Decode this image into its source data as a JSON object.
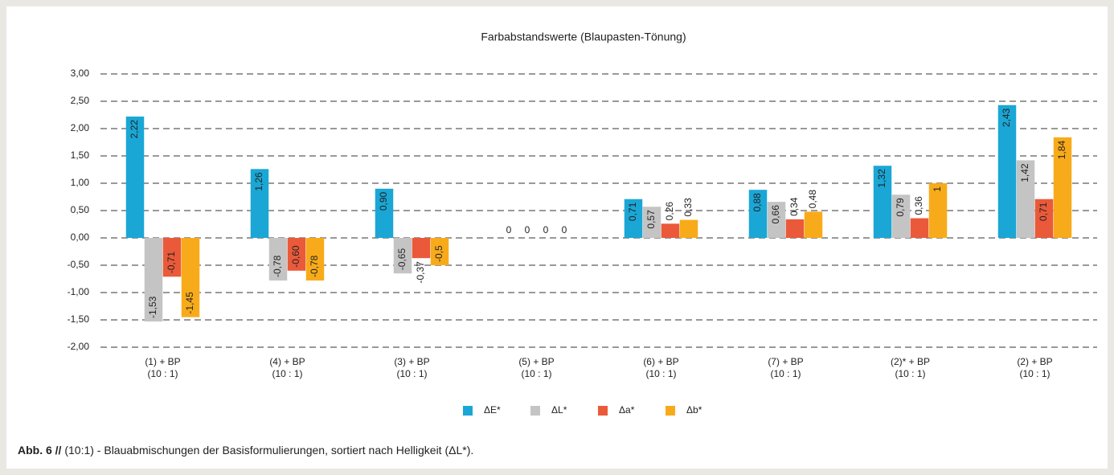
{
  "chart_data": {
    "type": "bar",
    "title": "Farbabstandswerte (Blaupasten-Tönung)",
    "categories": [
      "(1) + BP\n(10 : 1)",
      "(4) + BP\n(10 : 1)",
      "(3) + BP\n(10 : 1)",
      "(5) + BP\n(10 : 1)",
      "(6) + BP\n(10 : 1)",
      "(7) + BP\n(10 : 1)",
      "(2)* + BP\n(10 : 1)",
      "(2) + BP\n(10 : 1)"
    ],
    "series": [
      {
        "name": "ΔE*",
        "color": "#1aa7d6",
        "values": [
          2.22,
          1.26,
          0.9,
          0,
          0.71,
          0.88,
          1.32,
          2.43
        ],
        "value_labels": [
          "2,22",
          "1,26",
          "0,90",
          "0",
          "0,71",
          "0,88",
          "1,32",
          "2,43"
        ]
      },
      {
        "name": "ΔL*",
        "color": "#c4c4c4",
        "values": [
          -1.53,
          -0.78,
          -0.65,
          0,
          0.57,
          0.66,
          0.79,
          1.42
        ],
        "value_labels": [
          "-1,53",
          "-0,78",
          "-0,65",
          "0",
          "0,57",
          "0,66",
          "0,79",
          "1,42"
        ]
      },
      {
        "name": "Δa*",
        "color": "#ea5a3a",
        "values": [
          -0.71,
          -0.6,
          -0.37,
          0,
          0.26,
          0.34,
          0.36,
          0.71
        ],
        "value_labels": [
          "-0,71",
          "-0,60",
          "-0,37",
          "0",
          "0,26",
          "0,34",
          "0,36",
          "0,71"
        ]
      },
      {
        "name": "Δb*",
        "color": "#f8ab1a",
        "values": [
          -1.45,
          -0.78,
          -0.5,
          0,
          0.33,
          0.48,
          1,
          1.84
        ],
        "value_labels": [
          "-1,45",
          "-0,78",
          "-0,5",
          "0",
          "0,33",
          "0,48",
          "1",
          "1,84"
        ]
      }
    ],
    "ylim": [
      -2,
      3
    ],
    "yticks": [
      {
        "value": -2,
        "label": "-2,00"
      },
      {
        "value": -1.5,
        "label": "-1,50"
      },
      {
        "value": -1,
        "label": "-1,00"
      },
      {
        "value": -0.5,
        "label": "-0,50"
      },
      {
        "value": 0,
        "label": "0,00"
      },
      {
        "value": 0.5,
        "label": "0,50"
      },
      {
        "value": 1,
        "label": "1,00"
      },
      {
        "value": 1.5,
        "label": "1,50"
      },
      {
        "value": 2,
        "label": "2,00"
      },
      {
        "value": 2.5,
        "label": "2,50"
      },
      {
        "value": 3,
        "label": "3,00"
      }
    ],
    "grid": true,
    "legend": "bottom"
  },
  "caption": {
    "label": "Abb. 6 //",
    "text": "(10:1) - Blauabmischungen der Basisformulierungen, sortiert nach Helligkeit (ΔL*)."
  }
}
